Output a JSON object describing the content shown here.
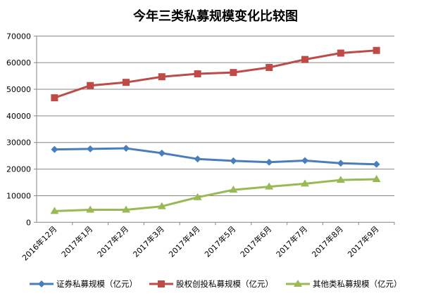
{
  "chart_data": {
    "type": "line",
    "title": "今年三类私募规模变化比较图",
    "xlabel": "",
    "ylabel": "",
    "ylim": [
      0,
      70000
    ],
    "yticks": [
      "0",
      "10000",
      "20000",
      "30000",
      "40000",
      "50000",
      "60000",
      "70000"
    ],
    "grid": true,
    "legend_position": "bottom",
    "categories": [
      "2016年12月",
      "2017年1月",
      "2017年2月",
      "2017年3月",
      "2017年4月",
      "2017年5月",
      "2017年6月",
      "2017年7月",
      "2017年8月",
      "2017年9月"
    ],
    "series": [
      {
        "name": "证券私募规模（亿元）",
        "color": "#4a7ebb",
        "marker": "diamond",
        "values": [
          27400,
          27600,
          27800,
          26000,
          23800,
          23100,
          22600,
          23200,
          22200,
          21800
        ]
      },
      {
        "name": "股权创投私募规模（亿元）",
        "color": "#be4b48",
        "marker": "square",
        "values": [
          46800,
          51400,
          52600,
          54700,
          55800,
          56300,
          58200,
          61200,
          63600,
          64600
        ]
      },
      {
        "name": "其他类私募规模（亿元）",
        "color": "#98b954",
        "marker": "triangle",
        "values": [
          4200,
          4700,
          4700,
          6000,
          9400,
          12200,
          13400,
          14500,
          15900,
          16200
        ]
      }
    ]
  }
}
